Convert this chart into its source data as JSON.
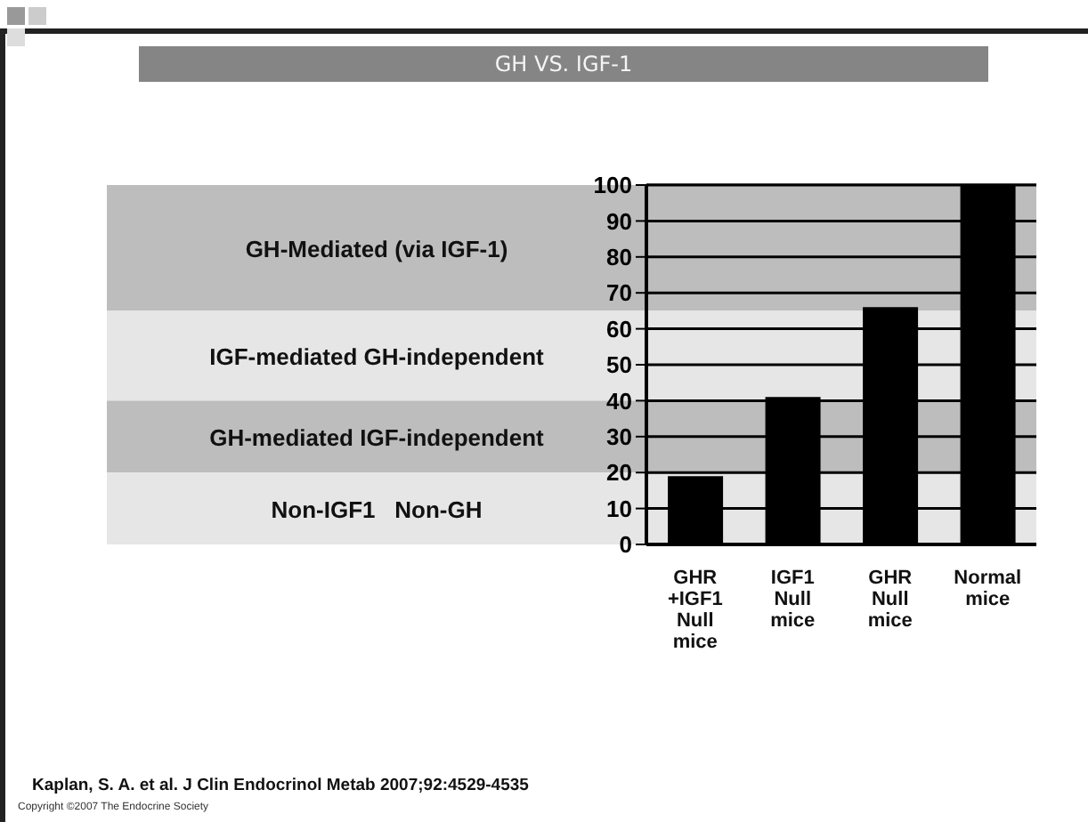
{
  "chart_data": {
    "type": "bar",
    "title": "GH VS. IGF-1",
    "categories": [
      "GHR +IGF1 Null mice",
      "IGF1 Null mice",
      "GHR Null mice",
      "Normal mice"
    ],
    "values": [
      19,
      41,
      66,
      100
    ],
    "color": "#000000",
    "ylim": [
      0,
      100
    ],
    "yticks": [
      0,
      10,
      20,
      30,
      40,
      50,
      60,
      70,
      80,
      90,
      100
    ],
    "grid": "y",
    "bands": [
      {
        "axis": "y",
        "from": 65,
        "to": 100,
        "label": "GH-Mediated (via IGF-1)",
        "color": "#bdbdbd"
      },
      {
        "axis": "y",
        "from": 40,
        "to": 65,
        "label": "IGF-mediated GH-independent",
        "color": "#e6e6e6"
      },
      {
        "axis": "y",
        "from": 20,
        "to": 40,
        "label": "GH-mediated IGF-independent",
        "color": "#bdbdbd"
      },
      {
        "axis": "y",
        "from": 0,
        "to": 20,
        "label": "Non-IGF1   Non-GH",
        "color": "#e6e6e6"
      }
    ],
    "annotations": [
      "Kaplan, S. A. et al. J Clin Endocrinol Metab 2007;92:4529-4535",
      "Copyright ©2007 The Endocrine Society"
    ]
  }
}
